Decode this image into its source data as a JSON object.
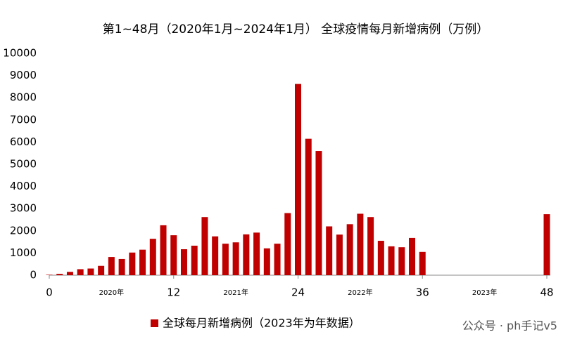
{
  "chart_data": {
    "type": "bar",
    "title": "第1~48月（2020年1月~2024年1月） 全球疫情每月新增病例（万例）",
    "x": [
      0,
      1,
      2,
      3,
      4,
      5,
      6,
      7,
      8,
      9,
      10,
      11,
      12,
      13,
      14,
      15,
      16,
      17,
      18,
      19,
      20,
      21,
      22,
      23,
      24,
      25,
      26,
      27,
      28,
      29,
      30,
      31,
      32,
      33,
      34,
      35,
      36,
      48
    ],
    "series": [
      {
        "name": "全球每月新增病例（2023年为年数据）",
        "color": "#c00000",
        "values": [
          20,
          60,
          150,
          270,
          300,
          420,
          820,
          730,
          1020,
          1150,
          1640,
          2250,
          1800,
          1170,
          1330,
          2620,
          1750,
          1420,
          1480,
          1840,
          1920,
          1210,
          1420,
          2800,
          8620,
          6150,
          5600,
          2200,
          1830,
          2300,
          2770,
          2620,
          1550,
          1300,
          1260,
          1680,
          1050,
          2750
        ]
      }
    ],
    "xlim": [
      0,
      48
    ],
    "xticks": [
      0,
      12,
      24,
      36,
      48
    ],
    "ylim": [
      0,
      10000
    ],
    "yticks": [
      0,
      1000,
      2000,
      3000,
      4000,
      5000,
      6000,
      7000,
      8000,
      9000,
      10000
    ],
    "annotations": [
      {
        "text": "2020年",
        "x": 6
      },
      {
        "text": "2021年",
        "x": 18
      },
      {
        "text": "2022年",
        "x": 30
      },
      {
        "text": "2023年",
        "x": 42
      }
    ],
    "watermark": "公众号 · ph手记v5",
    "grid": false
  }
}
